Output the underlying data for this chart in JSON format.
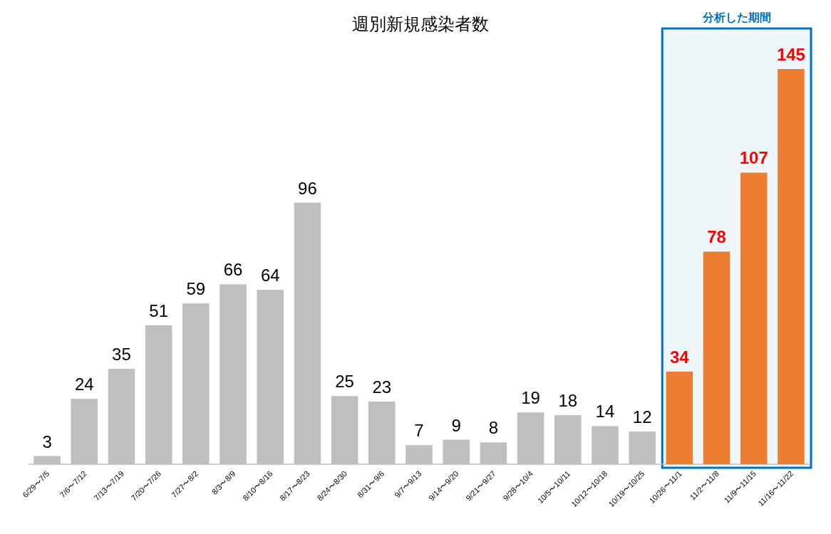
{
  "chart_data": {
    "type": "bar",
    "title": "週別新規感染者数",
    "categories": [
      "6/29〜7/5",
      "7/6〜7/12",
      "7/13〜7/19",
      "7/20〜7/26",
      "7/27〜8/2",
      "8/3〜8/9",
      "8/10〜8/16",
      "8/17〜8/23",
      "8/24〜8/30",
      "8/31〜9/6",
      "9/7〜9/13",
      "9/14〜9/20",
      "9/21〜9/27",
      "9/28〜10/4",
      "10/5〜10/11",
      "10/12〜10/18",
      "10/19〜10/25",
      "10/26〜11/1",
      "11/2〜11/8",
      "11/9〜11/15",
      "11/16〜11/22"
    ],
    "values": [
      3,
      24,
      35,
      51,
      59,
      66,
      64,
      96,
      25,
      23,
      7,
      9,
      8,
      19,
      18,
      14,
      12,
      34,
      78,
      107,
      145
    ],
    "colors": [
      "#bfbfbf",
      "#bfbfbf",
      "#bfbfbf",
      "#bfbfbf",
      "#bfbfbf",
      "#bfbfbf",
      "#bfbfbf",
      "#bfbfbf",
      "#bfbfbf",
      "#bfbfbf",
      "#bfbfbf",
      "#bfbfbf",
      "#bfbfbf",
      "#bfbfbf",
      "#bfbfbf",
      "#bfbfbf",
      "#bfbfbf",
      "#ed7d31",
      "#ed7d31",
      "#ed7d31",
      "#ed7d31"
    ],
    "data_labels": true,
    "bands": [
      {
        "axis": "x",
        "from": "10/26〜11/1",
        "to": "11/16〜11/22",
        "label": "分析した期間",
        "color": "#0070c0"
      }
    ]
  }
}
